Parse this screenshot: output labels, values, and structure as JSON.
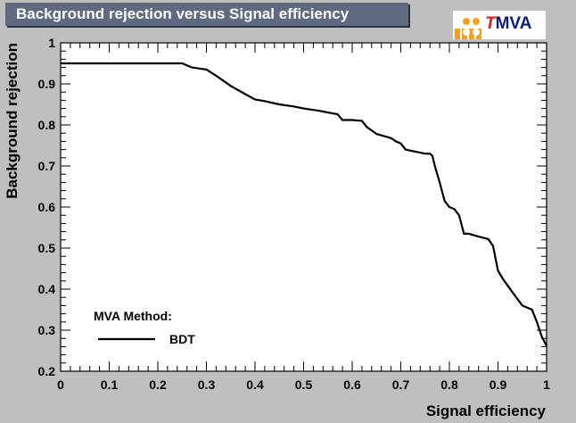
{
  "header": {
    "title": "Background rejection versus Signal efficiency"
  },
  "logo": {
    "letter_t": "T",
    "rest": "MVA"
  },
  "chart_data": {
    "type": "line",
    "title": "Background rejection versus Signal efficiency",
    "xlabel": "Signal efficiency",
    "ylabel": "Background rejection",
    "xlim": [
      0,
      1
    ],
    "ylim": [
      0.2,
      1
    ],
    "x_ticks": [
      "0",
      "0.1",
      "0.2",
      "0.3",
      "0.4",
      "0.5",
      "0.6",
      "0.7",
      "0.8",
      "0.9",
      "1"
    ],
    "y_ticks": [
      "0.2",
      "0.3",
      "0.4",
      "0.5",
      "0.6",
      "0.7",
      "0.8",
      "0.9",
      "1"
    ],
    "grid": false,
    "legend": {
      "title": "MVA Method:",
      "placement": "bottom-left",
      "entries": [
        "BDT"
      ]
    },
    "series": [
      {
        "name": "BDT",
        "color": "#000000",
        "x": [
          0,
          0.05,
          0.1,
          0.15,
          0.2,
          0.25,
          0.27,
          0.3,
          0.32,
          0.35,
          0.38,
          0.4,
          0.42,
          0.45,
          0.48,
          0.5,
          0.53,
          0.56,
          0.57,
          0.58,
          0.6,
          0.62,
          0.63,
          0.65,
          0.68,
          0.69,
          0.7,
          0.71,
          0.73,
          0.75,
          0.76,
          0.765,
          0.77,
          0.78,
          0.79,
          0.8,
          0.81,
          0.82,
          0.83,
          0.84,
          0.86,
          0.88,
          0.89,
          0.9,
          0.91,
          0.93,
          0.95,
          0.97,
          0.98,
          0.99,
          1.0
        ],
        "y": [
          0.95,
          0.95,
          0.95,
          0.95,
          0.95,
          0.95,
          0.94,
          0.935,
          0.92,
          0.895,
          0.875,
          0.862,
          0.858,
          0.85,
          0.845,
          0.84,
          0.835,
          0.828,
          0.826,
          0.812,
          0.812,
          0.81,
          0.795,
          0.778,
          0.768,
          0.76,
          0.755,
          0.74,
          0.735,
          0.73,
          0.73,
          0.725,
          0.7,
          0.66,
          0.615,
          0.6,
          0.595,
          0.58,
          0.535,
          0.535,
          0.528,
          0.522,
          0.505,
          0.445,
          0.425,
          0.392,
          0.36,
          0.35,
          0.32,
          0.285,
          0.262
        ]
      }
    ]
  }
}
